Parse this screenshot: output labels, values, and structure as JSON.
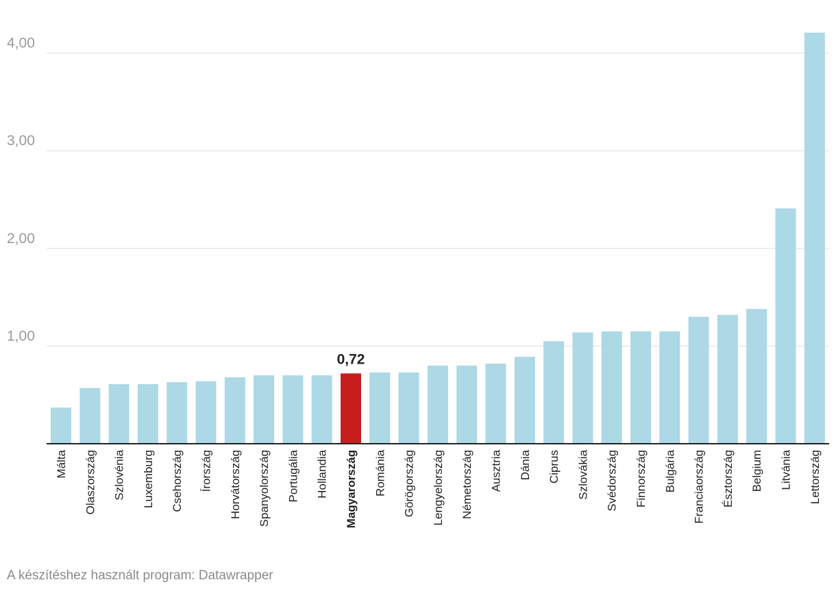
{
  "chart_data": {
    "type": "bar",
    "title": "",
    "xlabel": "",
    "ylabel": "",
    "ylim": [
      0,
      4.2
    ],
    "yticks": [
      1,
      2,
      3,
      4
    ],
    "ytick_labels": [
      "1,00",
      "2,00",
      "3,00",
      "4,00"
    ],
    "grid": true,
    "categories": [
      "Málta",
      "Olaszország",
      "Szlovénia",
      "Luxemburg",
      "Csehország",
      "Írország",
      "Horvátország",
      "Spanyolország",
      "Portugália",
      "Hollandia",
      "Magyarország",
      "Románia",
      "Görögország",
      "Lengyelország",
      "Németország",
      "Ausztria",
      "Dánia",
      "Ciprus",
      "Szlovákia",
      "Svédország",
      "Finnország",
      "Bulgária",
      "Franciaország",
      "Észtország",
      "Belgium",
      "Litvánia",
      "Lettország"
    ],
    "values": [
      0.37,
      0.57,
      0.61,
      0.61,
      0.63,
      0.64,
      0.68,
      0.7,
      0.7,
      0.7,
      0.72,
      0.73,
      0.73,
      0.8,
      0.8,
      0.82,
      0.89,
      1.05,
      1.14,
      1.15,
      1.15,
      1.15,
      1.3,
      1.32,
      1.38,
      2.41,
      4.21
    ],
    "highlight": {
      "category": "Magyarország",
      "label": "0,72"
    },
    "colors": {
      "bar": "#add8e6",
      "highlight": "#c71e1d"
    }
  },
  "footer": "A készítéshez használt program: Datawrapper"
}
